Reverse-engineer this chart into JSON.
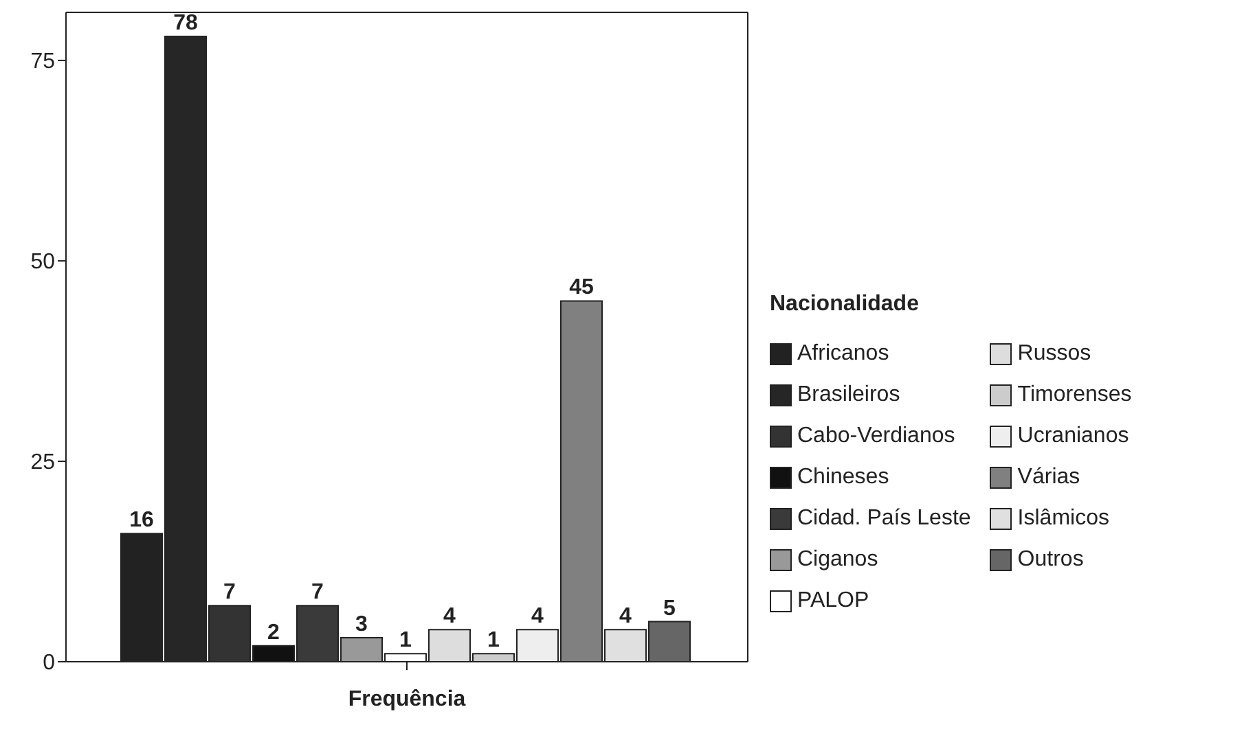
{
  "chart_data": {
    "type": "bar",
    "xlabel": "Frequência",
    "legend_title": "Nacionalidade",
    "categories": [
      null
    ],
    "ylim": [
      0,
      81
    ],
    "yticks": [
      0,
      25,
      50,
      75
    ],
    "legend": "right",
    "data_labels": true,
    "series": [
      {
        "name": "Africanos",
        "color": "#222222",
        "values": [
          16
        ]
      },
      {
        "name": "Brasileiros",
        "color": "#262626",
        "values": [
          78
        ]
      },
      {
        "name": "Cabo-Verdianos",
        "color": "#333333",
        "values": [
          7
        ]
      },
      {
        "name": "Chineses",
        "color": "#111111",
        "values": [
          2
        ]
      },
      {
        "name": "Cidad. País Leste",
        "color": "#3a3a3a",
        "values": [
          7
        ]
      },
      {
        "name": "Ciganos",
        "color": "#999999",
        "values": [
          3
        ]
      },
      {
        "name": "PALOP",
        "color": "#ffffff",
        "values": [
          1
        ]
      },
      {
        "name": "Russos",
        "color": "#dddddd",
        "values": [
          4
        ]
      },
      {
        "name": "Timorenses",
        "color": "#cccccc",
        "values": [
          1
        ]
      },
      {
        "name": "Ucranianos",
        "color": "#eeeeee",
        "values": [
          4
        ]
      },
      {
        "name": "Várias",
        "color": "#808080",
        "values": [
          45
        ]
      },
      {
        "name": "Islâmicos",
        "color": "#e0e0e0",
        "values": [
          4
        ]
      },
      {
        "name": "Outros",
        "color": "#666666",
        "values": [
          5
        ]
      }
    ]
  }
}
